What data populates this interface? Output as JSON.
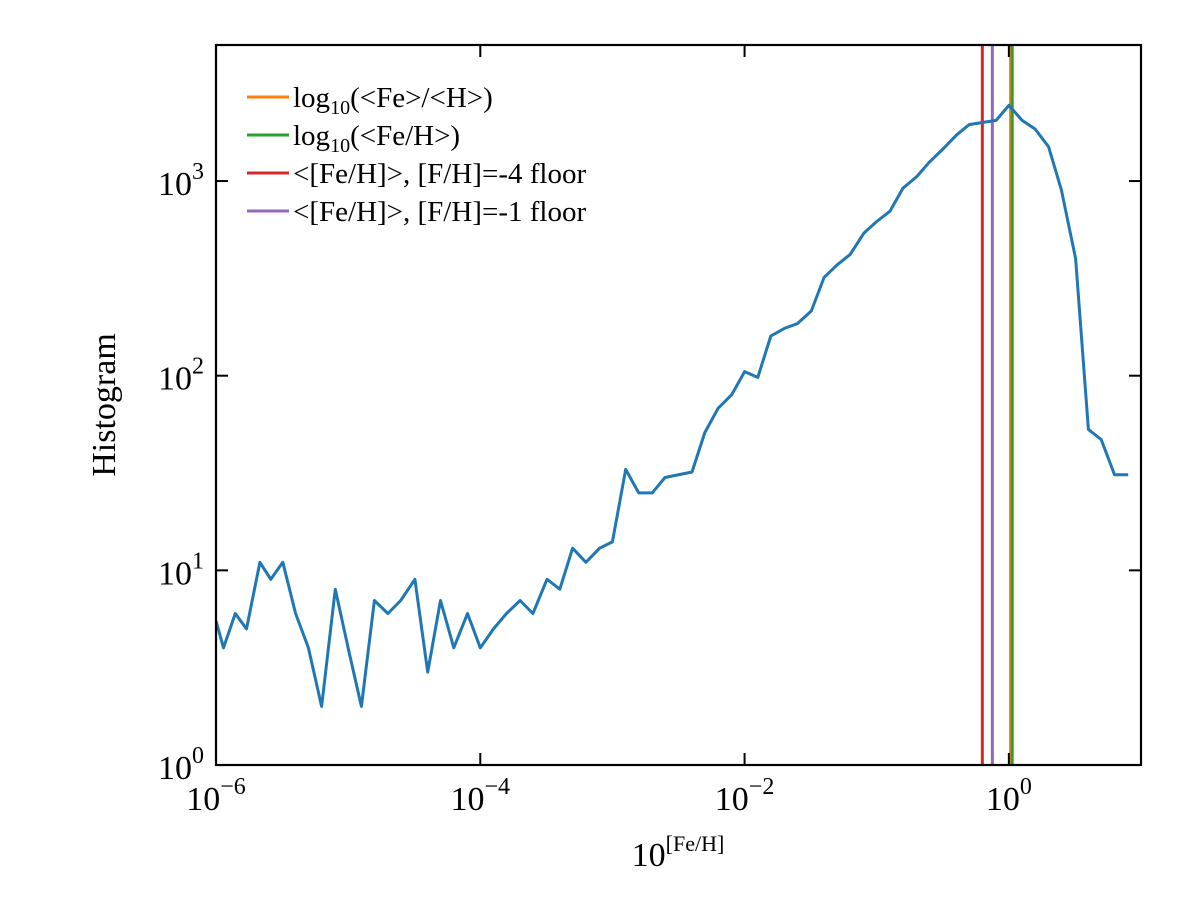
{
  "chart_data": {
    "type": "line",
    "title": "",
    "xlabel": {
      "base": "10",
      "sup": "[Fe/H]"
    },
    "ylabel": "Histogram",
    "xscale": "log",
    "yscale": "log",
    "xlim": [
      1e-06,
      10
    ],
    "ylim": [
      1,
      5000
    ],
    "x_ticks": [
      {
        "value": 1e-06,
        "base": "10",
        "exp": "−6"
      },
      {
        "value": 0.0001,
        "base": "10",
        "exp": "−4"
      },
      {
        "value": 0.01,
        "base": "10",
        "exp": "−2"
      },
      {
        "value": 1,
        "base": "10",
        "exp": "0"
      }
    ],
    "y_ticks": [
      {
        "value": 1,
        "base": "10",
        "exp": "0"
      },
      {
        "value": 10,
        "base": "10",
        "exp": "1"
      },
      {
        "value": 100,
        "base": "10",
        "exp": "2"
      },
      {
        "value": 1000,
        "base": "10",
        "exp": "3"
      }
    ],
    "grid": false,
    "legend_position": "top-left",
    "series": [
      {
        "color": "#1f77b4",
        "x": [
          1e-06,
          1.14e-06,
          1.4e-06,
          1.7e-06,
          2.15e-06,
          2.6e-06,
          3.2e-06,
          4e-06,
          5e-06,
          6.3e-06,
          8e-06,
          1e-05,
          1.26e-05,
          1.58e-05,
          2e-05,
          2.5e-05,
          3.2e-05,
          4e-05,
          5e-05,
          6.3e-05,
          8e-05,
          0.0001,
          0.000126,
          0.000158,
          0.0002,
          0.00025,
          0.00032,
          0.0004,
          0.0005,
          0.00063,
          0.0008,
          0.001,
          0.00126,
          0.00158,
          0.002,
          0.0025,
          0.004,
          0.005,
          0.0063,
          0.008,
          0.01,
          0.0126,
          0.0158,
          0.02,
          0.025,
          0.032,
          0.04,
          0.05,
          0.063,
          0.08,
          0.1,
          0.126,
          0.158,
          0.2,
          0.25,
          0.32,
          0.4,
          0.5,
          0.63,
          0.8,
          1.0,
          1.26,
          1.58,
          2.0,
          2.5,
          3.2,
          4.0,
          5.0,
          6.3,
          8.0
        ],
        "y": [
          5.5,
          4,
          6,
          5,
          11,
          9,
          11,
          6,
          4,
          2,
          8,
          4,
          2,
          7,
          6,
          7,
          9,
          3,
          7,
          4,
          6,
          4,
          5,
          6,
          7,
          6,
          9,
          8,
          13,
          11,
          13,
          14,
          33,
          25,
          25,
          30,
          32,
          51,
          68,
          80,
          105,
          98,
          160,
          175,
          185,
          215,
          320,
          370,
          420,
          540,
          620,
          700,
          920,
          1050,
          1250,
          1470,
          1720,
          1950,
          2000,
          2050,
          2450,
          2050,
          1850,
          1500,
          900,
          400,
          53,
          47,
          31,
          31
        ]
      }
    ],
    "vertical_lines": [
      {
        "label_pre": "log",
        "label_sub": "10",
        "label_post": "(<Fe>/<H>)",
        "x": 1.03,
        "color": "#ff7f0e"
      },
      {
        "label_pre": "log",
        "label_sub": "10",
        "label_post": "(<Fe/H>)",
        "x": 1.06,
        "color": "#2ca02c"
      },
      {
        "label_pre": "<[Fe/H]>, [F/H]=-4 floor",
        "label_sub": "",
        "label_post": "",
        "x": 0.63,
        "color": "#d62728"
      },
      {
        "label_pre": "<[Fe/H]>, [F/H]=-1 floor",
        "label_sub": "",
        "label_post": "",
        "x": 0.75,
        "color": "#9467bd"
      }
    ]
  }
}
